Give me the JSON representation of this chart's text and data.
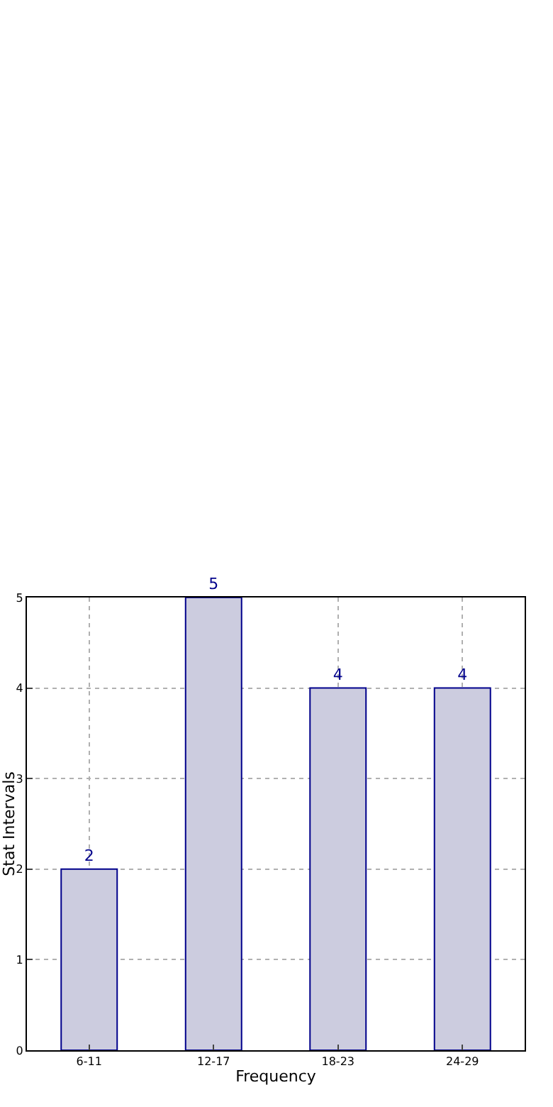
{
  "chart_data": {
    "type": "bar",
    "xlabel": "Frequency",
    "ylabel": "Stat Intervals",
    "categories": [
      "6-11",
      "12-17",
      "18-23",
      "24-29"
    ],
    "values": [
      2,
      5,
      4,
      4
    ],
    "color": "#ccccdf",
    "ylim": [
      0,
      5
    ],
    "yticks": [
      0,
      1,
      2,
      3,
      4,
      5
    ],
    "grid": true,
    "data_labels": true
  }
}
